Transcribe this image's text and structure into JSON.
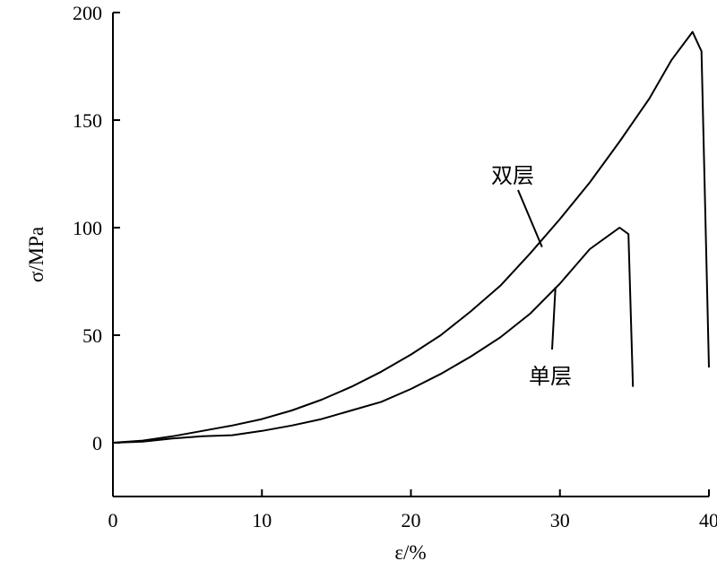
{
  "chart_data": {
    "type": "line",
    "xlabel": "ε/%",
    "ylabel": "σ/MPa",
    "xlim": [
      0,
      40
    ],
    "ylim": [
      -25,
      200
    ],
    "xticks": [
      0,
      10,
      20,
      30,
      40
    ],
    "yticks": [
      0,
      50,
      100,
      150,
      200
    ],
    "grid": false,
    "series": [
      {
        "name": "双层",
        "x": [
          0,
          2,
          4,
          6,
          8,
          10,
          12,
          14,
          16,
          18,
          20,
          22,
          24,
          26,
          28,
          30,
          32,
          34,
          36,
          37.5,
          38.9,
          39.5,
          40
        ],
        "y": [
          0,
          1,
          3,
          5.5,
          8,
          11,
          15,
          20,
          26,
          33,
          41,
          50,
          61,
          73,
          88,
          104,
          121,
          140,
          160,
          178,
          191,
          182,
          35
        ]
      },
      {
        "name": "单层",
        "x": [
          0,
          2,
          4,
          6,
          8,
          10,
          12,
          14,
          16,
          18,
          20,
          22,
          24,
          26,
          28,
          30,
          32,
          33.2,
          34,
          34.6,
          34.9
        ],
        "y": [
          0,
          0.5,
          2,
          3,
          3.5,
          5.5,
          8,
          11,
          15,
          19,
          25,
          32,
          40,
          49,
          60,
          74,
          90,
          96,
          100,
          97,
          26
        ]
      }
    ],
    "annotations": [
      {
        "text": "双层",
        "at": [
          28.8,
          91
        ]
      },
      {
        "text": "单层",
        "at": [
          29.7,
          74
        ]
      }
    ]
  }
}
